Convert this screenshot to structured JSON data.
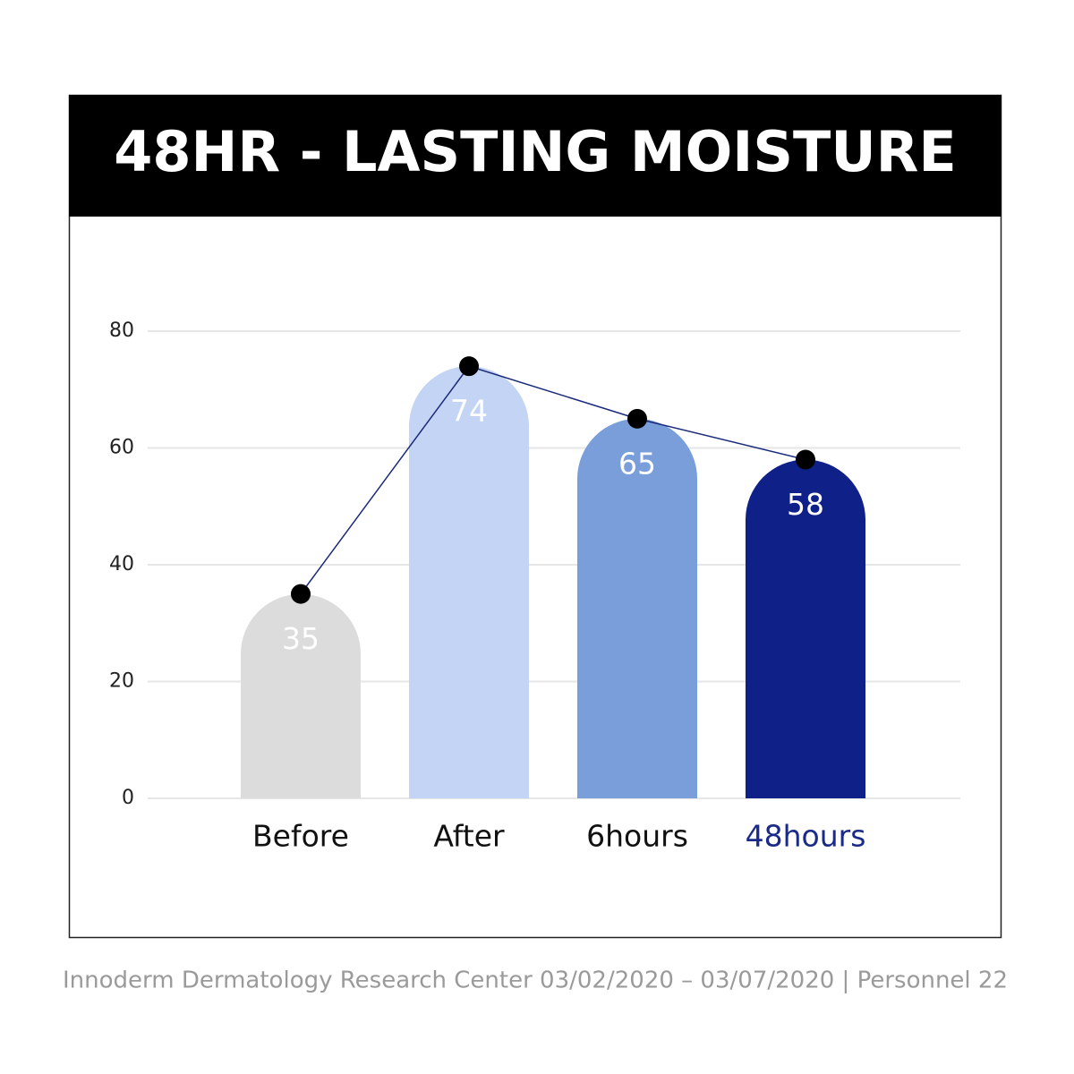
{
  "chart_data": {
    "type": "bar",
    "title": "48HR - LASTING MOISTURE",
    "categories": [
      "Before",
      "After",
      "6hours",
      "48hours"
    ],
    "values": [
      35,
      74,
      65,
      58
    ],
    "colors": [
      "#dcdcdc",
      "#c3d4f5",
      "#7a9ed9",
      "#0f2189"
    ],
    "category_label_colors": [
      "#111111",
      "#111111",
      "#111111",
      "#1a2a8a"
    ],
    "line_color": "#1a2a7a",
    "ylim": [
      0,
      80
    ],
    "yticks": [
      0,
      20,
      40,
      60,
      80
    ],
    "grid": true,
    "source": "Innoderm Dermatology Research Center 03/02/2020 – 03/07/2020 | Personnel 22"
  }
}
